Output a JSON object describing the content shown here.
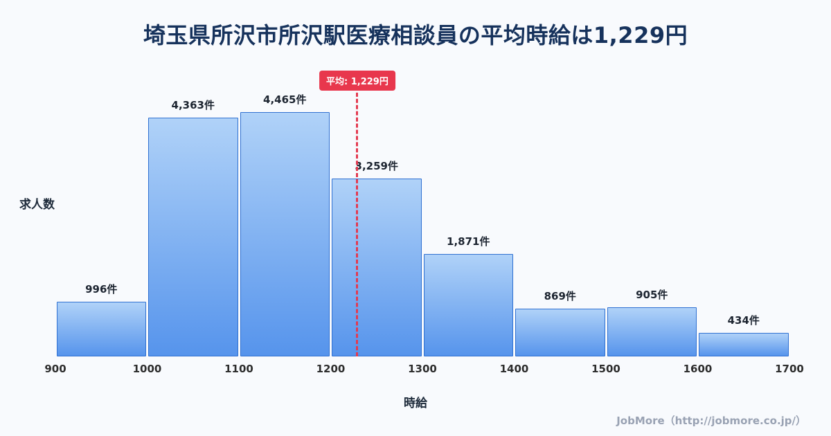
{
  "page": {
    "title": "埼玉県所沢市所沢駅医療相談員の平均時給は1,229円",
    "footer_credit": "JobMore（http://jobmore.co.jp/）"
  },
  "chart_data": {
    "type": "bar",
    "subtype": "histogram",
    "title": "埼玉県所沢市所沢駅医療相談員の平均時給は1,229円",
    "xlabel": "時給",
    "ylabel": "求人数",
    "bins": [
      900,
      1000,
      1100,
      1200,
      1300,
      1400,
      1500,
      1600,
      1700
    ],
    "x_tick_labels": [
      "900",
      "1000",
      "1100",
      "1200",
      "1300",
      "1400",
      "1500",
      "1600",
      "1700"
    ],
    "values": [
      996,
      4363,
      4465,
      3259,
      1871,
      869,
      905,
      434
    ],
    "value_labels": [
      "996件",
      "4,363件",
      "4,465件",
      "3,259件",
      "1,871件",
      "869件",
      "905件",
      "434件"
    ],
    "ylim": [
      0,
      5250
    ],
    "grid": false,
    "legend": "none",
    "average": {
      "value": 1229,
      "label": "平均: 1,229円"
    },
    "colors": {
      "background": "#f8fafd",
      "bar_gradient_top": "#b0d2f8",
      "bar_gradient_bottom": "#5694ec",
      "bar_border": "#2f70d1",
      "average_line": "#e43a50",
      "average_badge_bg": "#e8374d",
      "average_badge_text": "#ffffff",
      "title_text": "#16325c",
      "footer_text": "#99a2b3"
    }
  }
}
